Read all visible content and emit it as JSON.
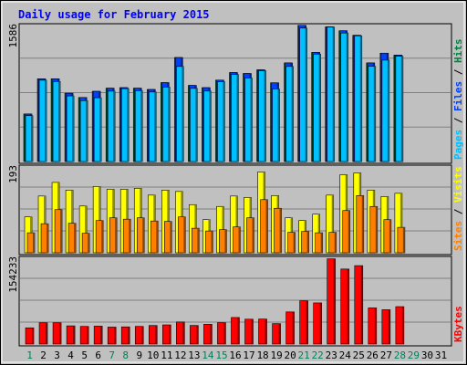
{
  "chart_data": {
    "type": "bar",
    "title": "Daily usage for February 2015",
    "categories": [
      "1",
      "2",
      "3",
      "4",
      "5",
      "6",
      "7",
      "8",
      "9",
      "10",
      "11",
      "12",
      "13",
      "14",
      "15",
      "16",
      "17",
      "18",
      "19",
      "20",
      "21",
      "22",
      "23",
      "24",
      "25",
      "26",
      "27",
      "28",
      "29",
      "30",
      "31"
    ],
    "weekend_days": [
      1,
      7,
      8,
      14,
      15,
      21,
      22,
      28,
      29
    ],
    "panels": [
      {
        "id": "top",
        "max_label": "1586",
        "ylim": [
          0,
          1586
        ],
        "axis_labels": [
          {
            "text": "Pages",
            "color": "#00c0ff"
          },
          {
            "text": " / ",
            "color": "#000000"
          },
          {
            "text": "Files",
            "color": "#0040ff"
          },
          {
            "text": " / ",
            "color": "#000000"
          },
          {
            "text": "Hits",
            "color": "#008040"
          }
        ],
        "series": [
          {
            "name": "Hits",
            "color": "#008040",
            "values": [
              547,
              952,
              952,
              786,
              737,
              808,
              844,
              850,
              844,
              829,
              908,
              1197,
              876,
              850,
              937,
              1024,
              1013,
              1055,
              906,
              1135,
              1567,
              1256,
              1550,
              1505,
              1453,
              1135,
              1247,
              1225,
              null,
              null,
              null
            ]
          },
          {
            "name": "Files",
            "color": "#0040ff",
            "values": [
              547,
              952,
              952,
              786,
              737,
              808,
              844,
              850,
              844,
              829,
              908,
              1197,
              876,
              850,
              937,
              1024,
              1013,
              1055,
              906,
              1135,
              1567,
              1256,
              1550,
              1505,
              1453,
              1135,
              1247,
              1225,
              null,
              null,
              null
            ]
          },
          {
            "name": "Pages",
            "color": "#00c0ff",
            "values": [
              528,
              936,
              921,
              755,
              701,
              734,
              810,
              839,
              815,
              800,
              856,
              1094,
              842,
              811,
              919,
              1002,
              961,
              1045,
              835,
              1094,
              1536,
              1236,
              1547,
              1479,
              1447,
              1096,
              1167,
              1211,
              null,
              null,
              null
            ]
          }
        ]
      },
      {
        "id": "mid",
        "max_label": "193",
        "ylim": [
          0,
          193
        ],
        "axis_labels": [
          {
            "text": "Sites",
            "color": "#ff8000"
          },
          {
            "text": " / ",
            "color": "#000000"
          },
          {
            "text": "Visits",
            "color": "#ffff00"
          }
        ],
        "series": [
          {
            "name": "Visits",
            "color": "#ffff00",
            "values": [
              79,
              125,
              155,
              138,
              103,
              146,
              140,
              140,
              142,
              127,
              138,
              135,
              106,
              73,
              102,
              125,
              122,
              178,
              126,
              77,
              71,
              85,
              127,
              172,
              176,
              138,
              124,
              131,
              null,
              null,
              null
            ]
          },
          {
            "name": "Sites",
            "color": "#ff8000",
            "values": [
              44,
              64,
              95,
              65,
              43,
              71,
              77,
              74,
              77,
              70,
              69,
              79,
              54,
              48,
              51,
              57,
              77,
              117,
              98,
              45,
              47,
              44,
              45,
              93,
              126,
              102,
              73,
              56,
              null,
              null,
              null
            ]
          }
        ]
      },
      {
        "id": "bottom",
        "max_label": "154233",
        "ylim": [
          0,
          154233
        ],
        "axis_labels": [
          {
            "text": "KBytes",
            "color": "#ff0000"
          }
        ],
        "series": [
          {
            "name": "KBytes",
            "color": "#ff0000",
            "values": [
              28500,
              37400,
              37400,
              32000,
              31000,
              31500,
              29800,
              30200,
              31000,
              32600,
              33700,
              38800,
              32700,
              34800,
              37500,
              46700,
              43700,
              44000,
              35900,
              56500,
              76100,
              72400,
              150000,
              132000,
              138000,
              63600,
              60400,
              65800,
              null,
              null,
              null
            ]
          }
        ]
      }
    ]
  }
}
